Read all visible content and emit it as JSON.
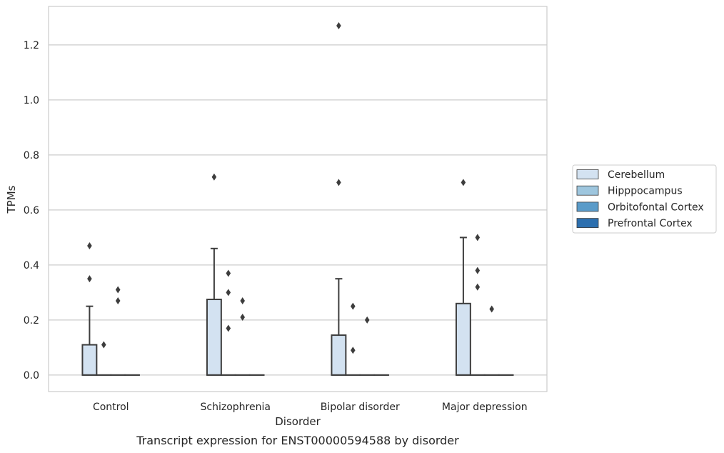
{
  "chart_data": {
    "type": "box",
    "caption": "Transcript expression for ENST00000594588 by disorder",
    "xlabel": "Disorder",
    "ylabel": "TPMs",
    "ylim": [
      -0.06,
      1.34
    ],
    "yticks": [
      "0.0",
      "0.2",
      "0.4",
      "0.6",
      "0.8",
      "1.0",
      "1.2"
    ],
    "grid": "horizontal",
    "legend_position": "right",
    "categories": [
      "Control",
      "Schizophrenia",
      "Bipolar disorder",
      "Major depression"
    ],
    "series": [
      {
        "name": "Cerebellum",
        "color": "#d3e2f1",
        "boxes": [
          {
            "q1": 0,
            "median": 0,
            "q3": 0.11,
            "whisker_low": 0,
            "whisker_high": 0.25,
            "outliers": [
              0.47,
              0.35
            ]
          },
          {
            "q1": 0,
            "median": 0,
            "q3": 0.275,
            "whisker_low": 0,
            "whisker_high": 0.46,
            "outliers": [
              0.72
            ]
          },
          {
            "q1": 0,
            "median": 0,
            "q3": 0.145,
            "whisker_low": 0,
            "whisker_high": 0.35,
            "outliers": [
              1.27,
              0.7
            ]
          },
          {
            "q1": 0,
            "median": 0,
            "q3": 0.26,
            "whisker_low": 0,
            "whisker_high": 0.5,
            "outliers": [
              0.7
            ]
          }
        ]
      },
      {
        "name": "Hipppocampus",
        "color": "#9ec6de",
        "boxes": [
          {
            "q1": 0,
            "median": 0,
            "q3": 0,
            "whisker_low": 0,
            "whisker_high": 0,
            "outliers": [
              0.11
            ]
          },
          {
            "q1": 0,
            "median": 0,
            "q3": 0,
            "whisker_low": 0,
            "whisker_high": 0,
            "outliers": [
              0.3,
              0.37,
              0.17
            ]
          },
          {
            "q1": 0,
            "median": 0,
            "q3": 0,
            "whisker_low": 0,
            "whisker_high": 0,
            "outliers": [
              0.25,
              0.09
            ]
          },
          {
            "q1": 0,
            "median": 0,
            "q3": 0,
            "whisker_low": 0,
            "whisker_high": 0,
            "outliers": [
              0.5,
              0.38,
              0.32
            ]
          }
        ]
      },
      {
        "name": "Orbitofontal Cortex",
        "color": "#5a9bc9",
        "boxes": [
          {
            "q1": 0,
            "median": 0,
            "q3": 0,
            "whisker_low": 0,
            "whisker_high": 0,
            "outliers": [
              0.31,
              0.27
            ]
          },
          {
            "q1": 0,
            "median": 0,
            "q3": 0,
            "whisker_low": 0,
            "whisker_high": 0,
            "outliers": [
              0.27,
              0.21
            ]
          },
          {
            "q1": 0,
            "median": 0,
            "q3": 0,
            "whisker_low": 0,
            "whisker_high": 0,
            "outliers": [
              0.2
            ]
          },
          {
            "q1": 0,
            "median": 0,
            "q3": 0,
            "whisker_low": 0,
            "whisker_high": 0,
            "outliers": [
              0.24
            ]
          }
        ]
      },
      {
        "name": "Prefrontal Cortex",
        "color": "#2c6faf",
        "boxes": [
          {
            "q1": 0,
            "median": 0,
            "q3": 0,
            "whisker_low": 0,
            "whisker_high": 0,
            "outliers": []
          },
          {
            "q1": 0,
            "median": 0,
            "q3": 0,
            "whisker_low": 0,
            "whisker_high": 0,
            "outliers": []
          },
          {
            "q1": 0,
            "median": 0,
            "q3": 0,
            "whisker_low": 0,
            "whisker_high": 0,
            "outliers": []
          },
          {
            "q1": 0,
            "median": 0,
            "q3": 0,
            "whisker_low": 0,
            "whisker_high": 0,
            "outliers": []
          }
        ]
      }
    ]
  }
}
